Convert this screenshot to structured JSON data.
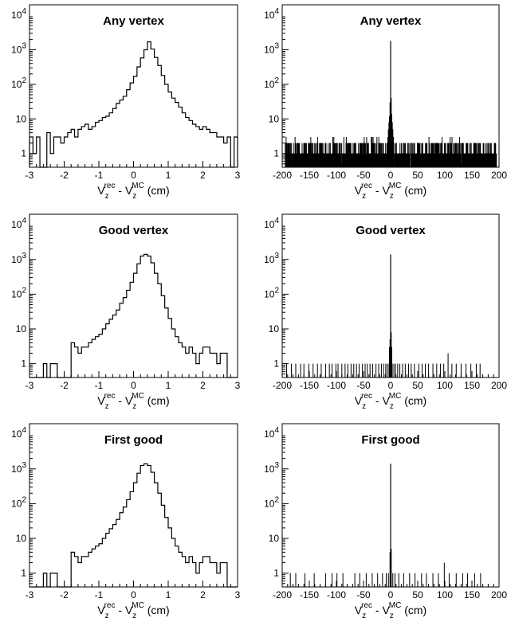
{
  "chart_data": [
    {
      "type": "bar",
      "title": "Any vertex",
      "xlabel": {
        "base": "V",
        "sub1": "z",
        "sup1": "rec",
        "mid": " - V",
        "sub2": "z",
        "sup2": "MC",
        "unit": " (cm)"
      },
      "ylabel": "",
      "xlim": [
        -3,
        3
      ],
      "ylim": [
        0.4,
        20000
      ],
      "yscale": "log",
      "grid": false,
      "x_ticks": [
        "-3",
        "-2",
        "-1",
        "0",
        "1",
        "2",
        "3"
      ],
      "x_tick_values": [
        -3,
        -2,
        -1,
        0,
        1,
        2,
        3
      ],
      "y_ticks": [
        "1",
        "10",
        "10²",
        "10³",
        "10⁴"
      ],
      "y_tick_values": [
        1,
        10,
        100,
        1000,
        10000
      ],
      "bin_width": 0.1,
      "bin_edges_start": -3.0,
      "values": [
        3,
        1,
        3,
        0.4,
        0.4,
        4,
        1,
        3,
        3,
        2,
        3,
        4,
        5,
        3,
        5,
        6,
        7,
        5,
        6,
        8,
        9,
        11,
        12,
        15,
        20,
        28,
        35,
        45,
        70,
        110,
        170,
        320,
        580,
        1000,
        1700,
        1050,
        600,
        350,
        180,
        100,
        60,
        40,
        30,
        22,
        15,
        11,
        9,
        7,
        6,
        5,
        6,
        5,
        4,
        4,
        3,
        3,
        2,
        3,
        0.4,
        3
      ]
    },
    {
      "type": "bar",
      "title": "Any vertex",
      "xlabel": {
        "base": "V",
        "sub1": "z",
        "sup1": "rec",
        "mid": " - V",
        "sub2": "z",
        "sup2": "MC",
        "unit": " (cm)"
      },
      "ylabel": "",
      "xlim": [
        -200,
        200
      ],
      "ylim": [
        0.4,
        20000
      ],
      "yscale": "log",
      "grid": false,
      "x_ticks": [
        "-200",
        "-150",
        "-100",
        "-50",
        "0",
        "50",
        "100",
        "150",
        "200"
      ],
      "x_tick_values": [
        -200,
        -150,
        -100,
        -50,
        0,
        50,
        100,
        150,
        200
      ],
      "y_ticks": [
        "1",
        "10",
        "10²",
        "10³",
        "10⁴"
      ],
      "y_tick_values": [
        1,
        10,
        100,
        1000,
        10000
      ],
      "bin_width": 1,
      "bin_edges_start": -200,
      "background": {
        "range": [
          -195,
          195
        ],
        "level": "1-2",
        "density": "dense"
      },
      "peak": {
        "x": [
          -5,
          -4,
          -3,
          -2,
          -1,
          0,
          1,
          2,
          3,
          4,
          5
        ],
        "values": [
          3,
          5,
          8,
          12,
          30,
          1800,
          40,
          14,
          8,
          5,
          3
        ]
      }
    },
    {
      "type": "bar",
      "title": "Good vertex",
      "xlabel": {
        "base": "V",
        "sub1": "z",
        "sup1": "rec",
        "mid": " - V",
        "sub2": "z",
        "sup2": "MC",
        "unit": " (cm)"
      },
      "ylabel": "",
      "xlim": [
        -3,
        3
      ],
      "ylim": [
        0.4,
        20000
      ],
      "yscale": "log",
      "grid": false,
      "x_ticks": [
        "-3",
        "-2",
        "-1",
        "0",
        "1",
        "2",
        "3"
      ],
      "x_tick_values": [
        -3,
        -2,
        -1,
        0,
        1,
        2,
        3
      ],
      "y_ticks": [
        "1",
        "10",
        "10²",
        "10³",
        "10⁴"
      ],
      "y_tick_values": [
        1,
        10,
        100,
        1000,
        10000
      ],
      "bin_width": 0.1,
      "bin_edges_start": -3.0,
      "values": [
        0.4,
        0.4,
        0.4,
        0.4,
        1,
        0.4,
        1,
        1,
        0.4,
        0.4,
        0.4,
        0.4,
        4,
        3,
        2,
        3,
        3,
        4,
        5,
        6,
        7,
        10,
        14,
        19,
        25,
        35,
        55,
        80,
        130,
        220,
        400,
        750,
        1250,
        1400,
        1250,
        800,
        400,
        200,
        90,
        40,
        20,
        10,
        6,
        4,
        3,
        2,
        3,
        2,
        1,
        2,
        3,
        3,
        2,
        2,
        1,
        2,
        2,
        0.4,
        0.4,
        0.4
      ]
    },
    {
      "type": "bar",
      "title": "Good vertex",
      "xlabel": {
        "base": "V",
        "sub1": "z",
        "sup1": "rec",
        "mid": " - V",
        "sub2": "z",
        "sup2": "MC",
        "unit": " (cm)"
      },
      "ylabel": "",
      "xlim": [
        -200,
        200
      ],
      "ylim": [
        0.4,
        20000
      ],
      "yscale": "log",
      "grid": false,
      "x_ticks": [
        "-200",
        "-150",
        "-100",
        "-50",
        "0",
        "50",
        "100",
        "150",
        "200"
      ],
      "x_tick_values": [
        -200,
        -150,
        -100,
        -50,
        0,
        50,
        100,
        150,
        200
      ],
      "y_ticks": [
        "1",
        "10",
        "10²",
        "10³",
        "10⁴"
      ],
      "y_tick_values": [
        1,
        10,
        100,
        1000,
        10000
      ],
      "bin_width": 1,
      "bin_edges_start": -200,
      "sparse_x": [
        -192,
        -183,
        -175,
        -166,
        -160,
        -151,
        -143,
        -135,
        -128,
        -120,
        -113,
        -108,
        -101,
        -97,
        -90,
        -84,
        -79,
        -73,
        -68,
        -63,
        -58,
        -52,
        -47,
        -43,
        -38,
        -33,
        -27,
        -22,
        -17,
        -13,
        -9,
        -6,
        -3,
        3,
        6,
        9,
        13,
        17,
        22,
        27,
        33,
        38,
        44,
        52,
        58,
        64,
        70,
        78,
        85,
        92,
        98,
        106,
        113,
        121,
        130,
        139,
        148,
        158,
        165
      ],
      "sparse_values": [
        1,
        1,
        1,
        1,
        1,
        1,
        1,
        1,
        1,
        1,
        1,
        1,
        1,
        1,
        1,
        1,
        1,
        1,
        1,
        1,
        1,
        1,
        1,
        1,
        1,
        1,
        1,
        1,
        1,
        1,
        1,
        1,
        1,
        1,
        1,
        1,
        1,
        1,
        1,
        1,
        1,
        1,
        1,
        1,
        1,
        1,
        1,
        1,
        1,
        1,
        1,
        2,
        1,
        1,
        1,
        1,
        1,
        1,
        1
      ],
      "peak": {
        "x": [
          -2,
          -1,
          0,
          1,
          2
        ],
        "values": [
          3,
          5,
          1400,
          8,
          3
        ]
      }
    },
    {
      "type": "bar",
      "title": "First good",
      "xlabel": {
        "base": "V",
        "sub1": "z",
        "sup1": "rec",
        "mid": " - V",
        "sub2": "z",
        "sup2": "MC",
        "unit": " (cm)"
      },
      "ylabel": "",
      "xlim": [
        -3,
        3
      ],
      "ylim": [
        0.4,
        20000
      ],
      "yscale": "log",
      "grid": false,
      "x_ticks": [
        "-3",
        "-2",
        "-1",
        "0",
        "1",
        "2",
        "3"
      ],
      "x_tick_values": [
        -3,
        -2,
        -1,
        0,
        1,
        2,
        3
      ],
      "y_ticks": [
        "1",
        "10",
        "10²",
        "10³",
        "10⁴"
      ],
      "y_tick_values": [
        1,
        10,
        100,
        1000,
        10000
      ],
      "bin_width": 0.1,
      "bin_edges_start": -3.0,
      "values": [
        0.4,
        0.4,
        0.4,
        0.4,
        1,
        0.4,
        1,
        1,
        0.4,
        0.4,
        0.4,
        0.4,
        4,
        3,
        2,
        3,
        3,
        4,
        5,
        6,
        7,
        10,
        14,
        19,
        25,
        35,
        55,
        80,
        130,
        220,
        400,
        750,
        1250,
        1400,
        1250,
        800,
        400,
        200,
        90,
        40,
        20,
        10,
        6,
        4,
        3,
        2,
        3,
        2,
        1,
        2,
        3,
        3,
        2,
        2,
        1,
        2,
        2,
        0.4,
        0.4,
        0.4
      ]
    },
    {
      "type": "bar",
      "title": "First good",
      "xlabel": {
        "base": "V",
        "sub1": "z",
        "sup1": "rec",
        "mid": " - V",
        "sub2": "z",
        "sup2": "MC",
        "unit": " (cm)"
      },
      "ylabel": "",
      "xlim": [
        -200,
        200
      ],
      "ylim": [
        0.4,
        20000
      ],
      "yscale": "log",
      "grid": false,
      "x_ticks": [
        "-200",
        "-150",
        "-100",
        "-50",
        "0",
        "50",
        "100",
        "150",
        "200"
      ],
      "x_tick_values": [
        -200,
        -150,
        -100,
        -50,
        0,
        50,
        100,
        150,
        200
      ],
      "y_ticks": [
        "1",
        "10",
        "10²",
        "10³",
        "10⁴"
      ],
      "y_tick_values": [
        1,
        10,
        100,
        1000,
        10000
      ],
      "bin_width": 1,
      "bin_edges_start": -200,
      "sparse_x": [
        -185,
        -175,
        -158,
        -141,
        -120,
        -108,
        -99,
        -88,
        -66,
        -57,
        -45,
        -34,
        -24,
        -15,
        -8,
        -4,
        4,
        8,
        15,
        24,
        35,
        45,
        57,
        66,
        78,
        88,
        99,
        108,
        121,
        133,
        142,
        155,
        166
      ],
      "sparse_values": [
        1,
        1,
        1,
        1,
        1,
        1,
        1,
        1,
        1,
        1,
        1,
        1,
        1,
        1,
        1,
        1,
        1,
        1,
        1,
        1,
        1,
        1,
        1,
        1,
        1,
        1,
        2,
        1,
        1,
        1,
        1,
        1,
        1
      ],
      "peak": {
        "x": [
          -1,
          0,
          1
        ],
        "values": [
          4,
          1400,
          5
        ]
      }
    }
  ]
}
